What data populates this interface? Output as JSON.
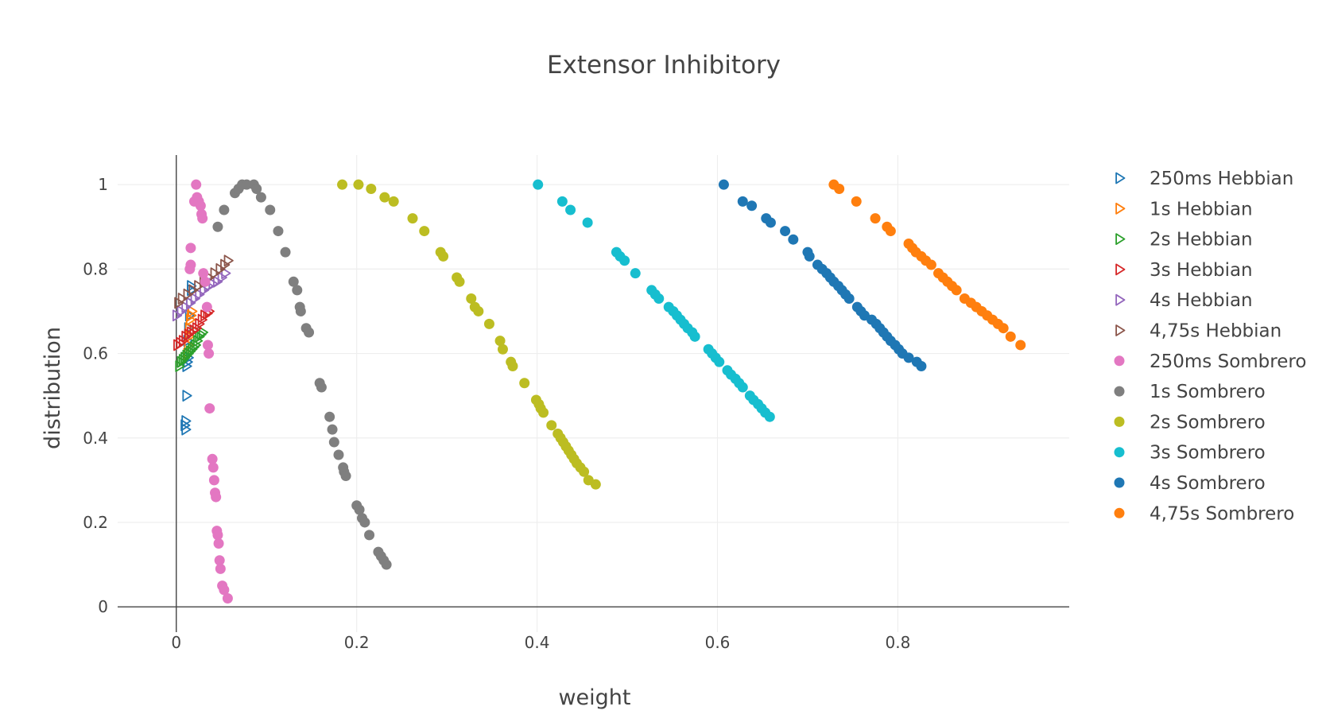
{
  "chart_data": {
    "type": "scatter",
    "title": "Extensor Inhibitory",
    "xlabel": "weight",
    "ylabel": "distribution",
    "xlim": [
      -0.065,
      0.99
    ],
    "ylim": [
      -0.06,
      1.07
    ],
    "xticks": [
      {
        "value": 0,
        "label": "0"
      },
      {
        "value": 0.2,
        "label": "0.2"
      },
      {
        "value": 0.4,
        "label": "0.4"
      },
      {
        "value": 0.6,
        "label": "0.6"
      },
      {
        "value": 0.8,
        "label": "0.8"
      }
    ],
    "yticks": [
      {
        "value": 0,
        "label": "0"
      },
      {
        "value": 0.2,
        "label": "0.2"
      },
      {
        "value": 0.4,
        "label": "0.4"
      },
      {
        "value": 0.6,
        "label": "0.6"
      },
      {
        "value": 0.8,
        "label": "0.8"
      },
      {
        "value": 1,
        "label": "1"
      }
    ],
    "grid": true,
    "legend_position": "right",
    "series": [
      {
        "name": "250ms Hebbian",
        "marker": "triangle-right-open",
        "color": "#1f77b4",
        "points": [
          [
            0.01,
            0.42
          ],
          [
            0.009,
            0.43
          ],
          [
            0.01,
            0.44
          ],
          [
            0.011,
            0.5
          ],
          [
            0.011,
            0.57
          ],
          [
            0.012,
            0.58
          ],
          [
            0.013,
            0.59
          ],
          [
            0.012,
            0.63
          ],
          [
            0.013,
            0.66
          ],
          [
            0.014,
            0.69
          ],
          [
            0.015,
            0.72
          ],
          [
            0.016,
            0.75
          ],
          [
            0.016,
            0.76
          ]
        ]
      },
      {
        "name": "1s Hebbian",
        "marker": "triangle-right-open",
        "color": "#ff7f0e",
        "points": [
          [
            0.012,
            0.6
          ],
          [
            0.013,
            0.62
          ],
          [
            0.014,
            0.64
          ],
          [
            0.014,
            0.66
          ],
          [
            0.015,
            0.68
          ],
          [
            0.016,
            0.69
          ],
          [
            0.017,
            0.7
          ]
        ]
      },
      {
        "name": "2s Hebbian",
        "marker": "triangle-right-open",
        "color": "#2ca02c",
        "points": [
          [
            0.003,
            0.57
          ],
          [
            0.005,
            0.58
          ],
          [
            0.007,
            0.585
          ],
          [
            0.009,
            0.59
          ],
          [
            0.011,
            0.595
          ],
          [
            0.013,
            0.6
          ],
          [
            0.015,
            0.605
          ],
          [
            0.017,
            0.61
          ],
          [
            0.019,
            0.615
          ],
          [
            0.021,
            0.62
          ],
          [
            0.023,
            0.63
          ],
          [
            0.025,
            0.64
          ],
          [
            0.027,
            0.645
          ],
          [
            0.029,
            0.65
          ]
        ]
      },
      {
        "name": "3s Hebbian",
        "marker": "triangle-right-open",
        "color": "#d62728",
        "points": [
          [
            0.001,
            0.62
          ],
          [
            0.004,
            0.625
          ],
          [
            0.007,
            0.63
          ],
          [
            0.01,
            0.64
          ],
          [
            0.013,
            0.645
          ],
          [
            0.016,
            0.65
          ],
          [
            0.019,
            0.655
          ],
          [
            0.022,
            0.66
          ],
          [
            0.025,
            0.67
          ],
          [
            0.028,
            0.68
          ],
          [
            0.031,
            0.69
          ],
          [
            0.034,
            0.695
          ],
          [
            0.036,
            0.7
          ]
        ]
      },
      {
        "name": "4s Hebbian",
        "marker": "triangle-right-open",
        "color": "#9467bd",
        "points": [
          [
            0.0,
            0.69
          ],
          [
            0.005,
            0.7
          ],
          [
            0.01,
            0.71
          ],
          [
            0.015,
            0.72
          ],
          [
            0.02,
            0.73
          ],
          [
            0.025,
            0.74
          ],
          [
            0.03,
            0.75
          ],
          [
            0.035,
            0.76
          ],
          [
            0.04,
            0.765
          ],
          [
            0.045,
            0.77
          ],
          [
            0.05,
            0.78
          ],
          [
            0.054,
            0.79
          ]
        ]
      },
      {
        "name": "4,75s Hebbian",
        "marker": "triangle-right-open",
        "color": "#8c564b",
        "points": [
          [
            0.002,
            0.72
          ],
          [
            0.006,
            0.73
          ],
          [
            0.012,
            0.74
          ],
          [
            0.018,
            0.75
          ],
          [
            0.024,
            0.76
          ],
          [
            0.03,
            0.77
          ],
          [
            0.036,
            0.78
          ],
          [
            0.042,
            0.79
          ],
          [
            0.048,
            0.8
          ],
          [
            0.053,
            0.81
          ],
          [
            0.057,
            0.82
          ]
        ]
      },
      {
        "name": "250ms Sombrero",
        "marker": "circle",
        "color": "#e377c2",
        "points": [
          [
            0.022,
            1.0
          ],
          [
            0.02,
            0.96
          ],
          [
            0.023,
            0.97
          ],
          [
            0.025,
            0.96
          ],
          [
            0.027,
            0.95
          ],
          [
            0.028,
            0.93
          ],
          [
            0.029,
            0.92
          ],
          [
            0.016,
            0.85
          ],
          [
            0.016,
            0.81
          ],
          [
            0.015,
            0.8
          ],
          [
            0.03,
            0.79
          ],
          [
            0.032,
            0.77
          ],
          [
            0.034,
            0.71
          ],
          [
            0.035,
            0.62
          ],
          [
            0.036,
            0.6
          ],
          [
            0.037,
            0.47
          ],
          [
            0.04,
            0.35
          ],
          [
            0.041,
            0.33
          ],
          [
            0.042,
            0.3
          ],
          [
            0.043,
            0.27
          ],
          [
            0.044,
            0.26
          ],
          [
            0.045,
            0.18
          ],
          [
            0.046,
            0.17
          ],
          [
            0.047,
            0.15
          ],
          [
            0.048,
            0.11
          ],
          [
            0.049,
            0.09
          ],
          [
            0.051,
            0.05
          ],
          [
            0.053,
            0.04
          ],
          [
            0.057,
            0.02
          ]
        ]
      },
      {
        "name": "1s Sombrero",
        "marker": "circle",
        "color": "#7f7f7f",
        "points": [
          [
            0.046,
            0.9
          ],
          [
            0.053,
            0.94
          ],
          [
            0.065,
            0.98
          ],
          [
            0.069,
            0.99
          ],
          [
            0.073,
            1.0
          ],
          [
            0.078,
            1.0
          ],
          [
            0.086,
            1.0
          ],
          [
            0.089,
            0.99
          ],
          [
            0.094,
            0.97
          ],
          [
            0.104,
            0.94
          ],
          [
            0.113,
            0.89
          ],
          [
            0.121,
            0.84
          ],
          [
            0.13,
            0.77
          ],
          [
            0.134,
            0.75
          ],
          [
            0.137,
            0.71
          ],
          [
            0.138,
            0.7
          ],
          [
            0.144,
            0.66
          ],
          [
            0.147,
            0.65
          ],
          [
            0.159,
            0.53
          ],
          [
            0.161,
            0.52
          ],
          [
            0.17,
            0.45
          ],
          [
            0.173,
            0.42
          ],
          [
            0.175,
            0.39
          ],
          [
            0.18,
            0.36
          ],
          [
            0.185,
            0.33
          ],
          [
            0.186,
            0.32
          ],
          [
            0.188,
            0.31
          ],
          [
            0.2,
            0.24
          ],
          [
            0.203,
            0.23
          ],
          [
            0.206,
            0.21
          ],
          [
            0.209,
            0.2
          ],
          [
            0.214,
            0.17
          ],
          [
            0.224,
            0.13
          ],
          [
            0.227,
            0.12
          ],
          [
            0.23,
            0.11
          ],
          [
            0.233,
            0.1
          ]
        ]
      },
      {
        "name": "2s Sombrero",
        "marker": "circle",
        "color": "#bcbd22",
        "points": [
          [
            0.184,
            1.0
          ],
          [
            0.202,
            1.0
          ],
          [
            0.216,
            0.99
          ],
          [
            0.231,
            0.97
          ],
          [
            0.241,
            0.96
          ],
          [
            0.262,
            0.92
          ],
          [
            0.275,
            0.89
          ],
          [
            0.293,
            0.84
          ],
          [
            0.296,
            0.83
          ],
          [
            0.311,
            0.78
          ],
          [
            0.314,
            0.77
          ],
          [
            0.327,
            0.73
          ],
          [
            0.331,
            0.71
          ],
          [
            0.335,
            0.7
          ],
          [
            0.347,
            0.67
          ],
          [
            0.359,
            0.63
          ],
          [
            0.362,
            0.61
          ],
          [
            0.371,
            0.58
          ],
          [
            0.373,
            0.57
          ],
          [
            0.386,
            0.53
          ],
          [
            0.399,
            0.49
          ],
          [
            0.402,
            0.48
          ],
          [
            0.404,
            0.47
          ],
          [
            0.407,
            0.46
          ],
          [
            0.416,
            0.43
          ],
          [
            0.423,
            0.41
          ],
          [
            0.426,
            0.4
          ],
          [
            0.429,
            0.39
          ],
          [
            0.432,
            0.38
          ],
          [
            0.435,
            0.37
          ],
          [
            0.438,
            0.36
          ],
          [
            0.441,
            0.35
          ],
          [
            0.444,
            0.34
          ],
          [
            0.448,
            0.33
          ],
          [
            0.452,
            0.32
          ],
          [
            0.457,
            0.3
          ],
          [
            0.465,
            0.29
          ]
        ]
      },
      {
        "name": "3s Sombrero",
        "marker": "circle",
        "color": "#17becf",
        "points": [
          [
            0.401,
            1.0
          ],
          [
            0.428,
            0.96
          ],
          [
            0.437,
            0.94
          ],
          [
            0.456,
            0.91
          ],
          [
            0.488,
            0.84
          ],
          [
            0.492,
            0.83
          ],
          [
            0.497,
            0.82
          ],
          [
            0.509,
            0.79
          ],
          [
            0.527,
            0.75
          ],
          [
            0.531,
            0.74
          ],
          [
            0.535,
            0.73
          ],
          [
            0.546,
            0.71
          ],
          [
            0.551,
            0.7
          ],
          [
            0.555,
            0.69
          ],
          [
            0.559,
            0.68
          ],
          [
            0.563,
            0.67
          ],
          [
            0.567,
            0.66
          ],
          [
            0.572,
            0.65
          ],
          [
            0.575,
            0.64
          ],
          [
            0.59,
            0.61
          ],
          [
            0.594,
            0.6
          ],
          [
            0.598,
            0.59
          ],
          [
            0.602,
            0.58
          ],
          [
            0.611,
            0.56
          ],
          [
            0.615,
            0.55
          ],
          [
            0.62,
            0.54
          ],
          [
            0.624,
            0.53
          ],
          [
            0.628,
            0.52
          ],
          [
            0.636,
            0.5
          ],
          [
            0.64,
            0.49
          ],
          [
            0.645,
            0.48
          ],
          [
            0.649,
            0.47
          ],
          [
            0.653,
            0.46
          ],
          [
            0.658,
            0.45
          ]
        ]
      },
      {
        "name": "4s Sombrero",
        "marker": "circle",
        "color": "#1f77b4",
        "points": [
          [
            0.607,
            1.0
          ],
          [
            0.628,
            0.96
          ],
          [
            0.638,
            0.95
          ],
          [
            0.654,
            0.92
          ],
          [
            0.659,
            0.91
          ],
          [
            0.675,
            0.89
          ],
          [
            0.684,
            0.87
          ],
          [
            0.7,
            0.84
          ],
          [
            0.702,
            0.83
          ],
          [
            0.711,
            0.81
          ],
          [
            0.716,
            0.8
          ],
          [
            0.721,
            0.79
          ],
          [
            0.725,
            0.78
          ],
          [
            0.729,
            0.77
          ],
          [
            0.734,
            0.76
          ],
          [
            0.738,
            0.75
          ],
          [
            0.742,
            0.74
          ],
          [
            0.746,
            0.73
          ],
          [
            0.755,
            0.71
          ],
          [
            0.759,
            0.7
          ],
          [
            0.763,
            0.69
          ],
          [
            0.771,
            0.68
          ],
          [
            0.776,
            0.67
          ],
          [
            0.78,
            0.66
          ],
          [
            0.784,
            0.65
          ],
          [
            0.788,
            0.64
          ],
          [
            0.792,
            0.63
          ],
          [
            0.797,
            0.62
          ],
          [
            0.801,
            0.61
          ],
          [
            0.805,
            0.6
          ],
          [
            0.812,
            0.59
          ],
          [
            0.821,
            0.58
          ],
          [
            0.826,
            0.57
          ]
        ]
      },
      {
        "name": "4,75s Sombrero",
        "marker": "circle",
        "color": "#ff7f0e",
        "points": [
          [
            0.729,
            1.0
          ],
          [
            0.735,
            0.99
          ],
          [
            0.754,
            0.96
          ],
          [
            0.775,
            0.92
          ],
          [
            0.788,
            0.9
          ],
          [
            0.792,
            0.89
          ],
          [
            0.812,
            0.86
          ],
          [
            0.816,
            0.85
          ],
          [
            0.82,
            0.84
          ],
          [
            0.826,
            0.83
          ],
          [
            0.831,
            0.82
          ],
          [
            0.837,
            0.81
          ],
          [
            0.845,
            0.79
          ],
          [
            0.85,
            0.78
          ],
          [
            0.855,
            0.77
          ],
          [
            0.86,
            0.76
          ],
          [
            0.865,
            0.75
          ],
          [
            0.874,
            0.73
          ],
          [
            0.881,
            0.72
          ],
          [
            0.887,
            0.71
          ],
          [
            0.893,
            0.7
          ],
          [
            0.899,
            0.69
          ],
          [
            0.905,
            0.68
          ],
          [
            0.911,
            0.67
          ],
          [
            0.917,
            0.66
          ],
          [
            0.925,
            0.64
          ],
          [
            0.936,
            0.62
          ]
        ]
      }
    ]
  }
}
